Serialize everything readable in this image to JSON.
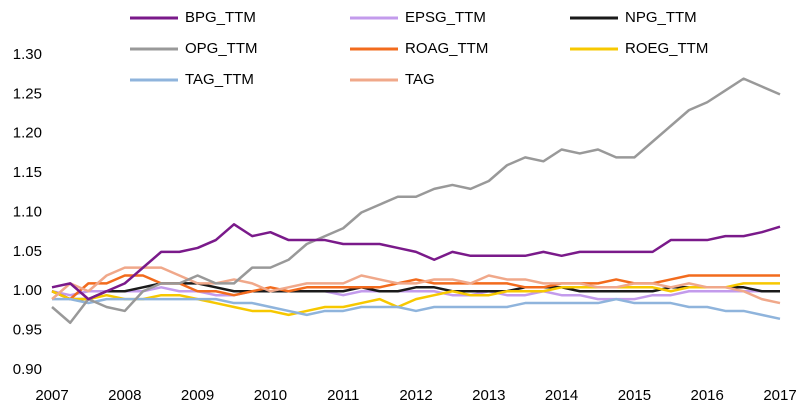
{
  "chart_data": {
    "type": "line",
    "x": [
      2007,
      2007.25,
      2007.5,
      2007.75,
      2008,
      2008.25,
      2008.5,
      2008.75,
      2009,
      2009.25,
      2009.5,
      2009.75,
      2010,
      2010.25,
      2010.5,
      2010.75,
      2011,
      2011.25,
      2011.5,
      2011.75,
      2012,
      2012.25,
      2012.5,
      2012.75,
      2013,
      2013.25,
      2013.5,
      2013.75,
      2014,
      2014.25,
      2014.5,
      2014.75,
      2015,
      2015.25,
      2015.5,
      2015.75,
      2016,
      2016.25,
      2016.5,
      2016.75,
      2017
    ],
    "xlim": [
      2007,
      2017
    ],
    "xticks": [
      2007,
      2008,
      2009,
      2010,
      2011,
      2012,
      2013,
      2014,
      2015,
      2016,
      2017
    ],
    "ylim": [
      0.9,
      1.3
    ],
    "yticks": [
      {
        "value": 0.9,
        "label": "0.90"
      },
      {
        "value": 0.95,
        "label": "0.95"
      },
      {
        "value": 1.0,
        "label": "1.00"
      },
      {
        "value": 1.05,
        "label": "1.05"
      },
      {
        "value": 1.1,
        "label": "1.10"
      },
      {
        "value": 1.15,
        "label": "1.15"
      },
      {
        "value": 1.2,
        "label": "1.20"
      },
      {
        "value": 1.25,
        "label": "1.25"
      },
      {
        "value": 1.3,
        "label": "1.30"
      }
    ],
    "series": [
      {
        "name": "BPG_TTM",
        "color": "#7a1a8a",
        "values": [
          1.005,
          1.01,
          0.99,
          1.0,
          1.01,
          1.03,
          1.05,
          1.05,
          1.055,
          1.065,
          1.085,
          1.07,
          1.075,
          1.065,
          1.065,
          1.065,
          1.06,
          1.06,
          1.06,
          1.055,
          1.05,
          1.04,
          1.05,
          1.045,
          1.045,
          1.045,
          1.045,
          1.05,
          1.045,
          1.05,
          1.05,
          1.05,
          1.05,
          1.05,
          1.065,
          1.065,
          1.065,
          1.07,
          1.07,
          1.075,
          1.082
        ]
      },
      {
        "name": "EPSG_TTM",
        "color": "#c39bec",
        "values": [
          1.0,
          0.995,
          1.0,
          1.0,
          1.0,
          1.0,
          1.005,
          1.0,
          1.0,
          0.995,
          0.995,
          1.0,
          1.0,
          1.0,
          1.0,
          1.0,
          0.995,
          1.0,
          1.0,
          1.0,
          1.0,
          1.0,
          0.995,
          0.995,
          1.0,
          0.995,
          0.995,
          1.0,
          0.995,
          0.995,
          0.99,
          0.99,
          0.99,
          0.995,
          0.995,
          1.0,
          1.0,
          1.0,
          1.0,
          1.0,
          1.0
        ]
      },
      {
        "name": "NPG_TTM",
        "color": "#1a1a1a",
        "values": [
          1.0,
          0.99,
          0.99,
          1.0,
          1.0,
          1.005,
          1.01,
          1.01,
          1.01,
          1.005,
          1.0,
          1.0,
          1.0,
          1.0,
          1.0,
          1.0,
          1.0,
          1.005,
          1.0,
          1.0,
          1.005,
          1.005,
          1.0,
          1.0,
          1.0,
          1.0,
          1.005,
          1.005,
          1.005,
          1.0,
          1.0,
          1.0,
          1.0,
          1.0,
          1.005,
          1.005,
          1.005,
          1.005,
          1.005,
          1.0,
          1.0
        ]
      },
      {
        "name": "OPG_TTM",
        "color": "#999999",
        "values": [
          0.98,
          0.96,
          0.99,
          0.98,
          0.975,
          1.0,
          1.01,
          1.01,
          1.02,
          1.01,
          1.01,
          1.03,
          1.03,
          1.04,
          1.06,
          1.07,
          1.08,
          1.1,
          1.11,
          1.12,
          1.12,
          1.13,
          1.135,
          1.13,
          1.14,
          1.16,
          1.17,
          1.165,
          1.18,
          1.175,
          1.18,
          1.17,
          1.17,
          1.19,
          1.21,
          1.23,
          1.24,
          1.255,
          1.27,
          1.26,
          1.25
        ]
      },
      {
        "name": "ROAG_TTM",
        "color": "#f26b1d",
        "values": [
          1.0,
          0.99,
          1.01,
          1.01,
          1.02,
          1.02,
          1.01,
          1.01,
          1.0,
          1.0,
          0.995,
          1.0,
          1.005,
          1.0,
          1.005,
          1.005,
          1.005,
          1.005,
          1.005,
          1.01,
          1.015,
          1.01,
          1.01,
          1.01,
          1.01,
          1.01,
          1.005,
          1.005,
          1.01,
          1.01,
          1.01,
          1.015,
          1.01,
          1.01,
          1.015,
          1.02,
          1.02,
          1.02,
          1.02,
          1.02,
          1.02
        ]
      },
      {
        "name": "ROEG_TTM",
        "color": "#f7c800",
        "values": [
          1.0,
          0.99,
          0.99,
          0.995,
          0.99,
          0.99,
          0.995,
          0.995,
          0.99,
          0.985,
          0.98,
          0.975,
          0.975,
          0.97,
          0.975,
          0.98,
          0.98,
          0.985,
          0.99,
          0.98,
          0.99,
          0.995,
          1.0,
          0.995,
          0.995,
          1.0,
          1.0,
          1.0,
          1.005,
          1.005,
          1.005,
          1.005,
          1.005,
          1.005,
          1.0,
          1.005,
          1.005,
          1.005,
          1.01,
          1.01,
          1.01
        ]
      },
      {
        "name": "TAG_TTM",
        "color": "#8fb4dc",
        "values": [
          0.99,
          0.99,
          0.985,
          0.99,
          0.99,
          0.99,
          0.99,
          0.99,
          0.99,
          0.99,
          0.985,
          0.985,
          0.98,
          0.975,
          0.97,
          0.975,
          0.975,
          0.98,
          0.98,
          0.98,
          0.975,
          0.98,
          0.98,
          0.98,
          0.98,
          0.98,
          0.985,
          0.985,
          0.985,
          0.985,
          0.985,
          0.99,
          0.985,
          0.985,
          0.985,
          0.98,
          0.98,
          0.975,
          0.975,
          0.97,
          0.965
        ]
      },
      {
        "name": "TAG",
        "color": "#f0a88a",
        "values": [
          0.99,
          1.01,
          1.0,
          1.02,
          1.03,
          1.03,
          1.03,
          1.02,
          1.01,
          1.01,
          1.015,
          1.01,
          1.0,
          1.005,
          1.01,
          1.01,
          1.01,
          1.02,
          1.015,
          1.01,
          1.01,
          1.015,
          1.015,
          1.01,
          1.02,
          1.015,
          1.015,
          1.01,
          1.01,
          1.01,
          1.005,
          1.005,
          1.01,
          1.01,
          1.005,
          1.01,
          1.005,
          1.005,
          1.0,
          0.99,
          0.985
        ]
      }
    ]
  }
}
